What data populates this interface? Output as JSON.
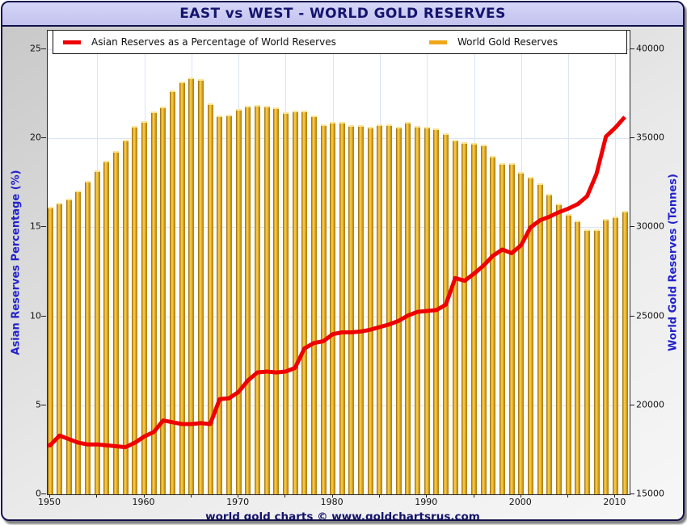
{
  "window": {
    "title": "EAST vs WEST - WORLD GOLD RESERVES",
    "footer": "world gold charts © www.goldchartsrus.com"
  },
  "colors": {
    "accent_navy": "#14146e",
    "titlebar_bg": "#c9c9f1",
    "grid": "#dbe4f3",
    "bar_gold": "#DAA520",
    "line_red": "#EE0000",
    "axis_title_blue": "#2222cc"
  },
  "legend": {
    "items": [
      {
        "label": "Asian Reserves as a Percentage of World Reserves",
        "color": "#EE0000"
      },
      {
        "label": "World Gold Reserves",
        "color": "#EFA81C"
      }
    ]
  },
  "chart_data": {
    "type": "bar+line combo, dual axis",
    "x_years": {
      "start": 1950,
      "end": 2011
    },
    "x_tick_labels": [
      1950,
      1960,
      1970,
      1980,
      1990,
      2000,
      2010
    ],
    "x_minor_tick_step": 5,
    "grid": "on, light blue, every 5 units / 5 years",
    "axis_left": {
      "title": "Asian Reserves Percentage (%)",
      "min": 0,
      "max": 26.05,
      "ticks": [
        0,
        5,
        10,
        15,
        20,
        25
      ]
    },
    "axis_right": {
      "title": "World Gold Reserves (Tonnes)",
      "min": 15000,
      "max": 41050,
      "ticks": [
        15000,
        20000,
        25000,
        30000,
        35000,
        40000
      ]
    },
    "series": [
      {
        "name": "World Gold Reserves",
        "type": "bar",
        "axis": "right",
        "color": "#DAA520",
        "values": [
          31150,
          31380,
          31600,
          32050,
          32600,
          33200,
          33740,
          34300,
          34930,
          35680,
          35950,
          36500,
          36800,
          37670,
          38180,
          38400,
          38350,
          36950,
          36280,
          36350,
          36670,
          36810,
          36880,
          36840,
          36730,
          36450,
          36580,
          36540,
          36290,
          35780,
          35920,
          35900,
          35750,
          35720,
          35660,
          35770,
          35770,
          35660,
          35900,
          35680,
          35630,
          35570,
          35270,
          34930,
          34770,
          34740,
          34630,
          34010,
          33600,
          33600,
          33090,
          32820,
          32470,
          31890,
          31360,
          30770,
          30380,
          29890,
          29890,
          30470,
          30590,
          30950
        ]
      },
      {
        "name": "Asian Reserves as a Percentage of World Reserves",
        "type": "line",
        "axis": "left",
        "color": "#EE0000",
        "values": [
          2.75,
          3.3,
          3.1,
          2.9,
          2.8,
          2.8,
          2.75,
          2.7,
          2.65,
          2.9,
          3.25,
          3.5,
          4.15,
          4.05,
          3.95,
          3.95,
          4.0,
          3.95,
          5.35,
          5.4,
          5.75,
          6.4,
          6.85,
          6.9,
          6.85,
          6.9,
          7.1,
          8.2,
          8.5,
          8.6,
          9.0,
          9.1,
          9.1,
          9.15,
          9.25,
          9.4,
          9.55,
          9.75,
          10.05,
          10.25,
          10.3,
          10.35,
          10.65,
          12.15,
          12.0,
          12.4,
          12.85,
          13.4,
          13.75,
          13.55,
          14.0,
          15.0,
          15.4,
          15.6,
          15.85,
          16.05,
          16.3,
          16.75,
          18.0,
          20.1,
          20.6,
          21.2
        ]
      }
    ]
  }
}
